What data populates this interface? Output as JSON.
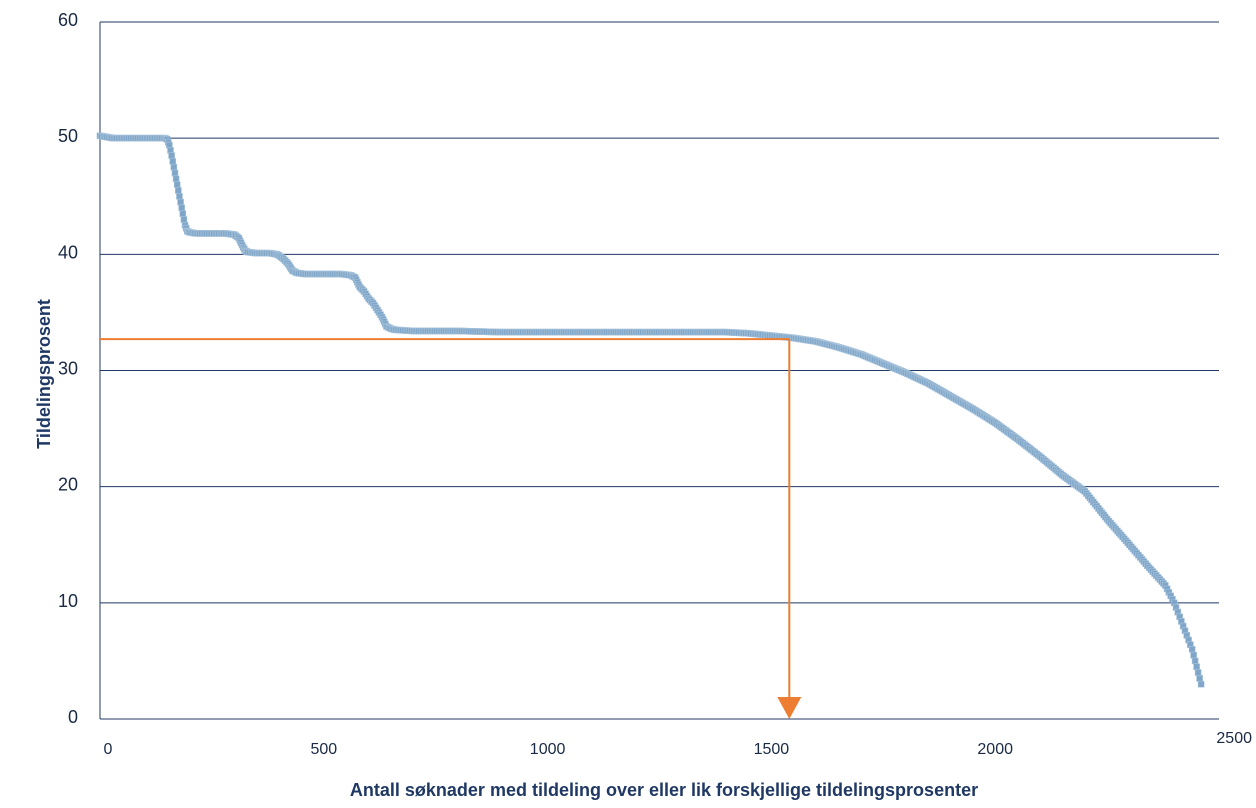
{
  "chart_data": {
    "type": "scatter",
    "title": "",
    "xlabel": "Antall søknader med tildeling over eller lik forskjellige tildelingsprosenter",
    "ylabel": "Tildelingsprosent",
    "xlim": [
      0,
      2500
    ],
    "ylim": [
      0,
      60
    ],
    "xticks": [
      "0",
      "500",
      "1000",
      "1500",
      "2000",
      "2500"
    ],
    "yticks": [
      "0",
      "10",
      "20",
      "30",
      "40",
      "50",
      "60"
    ],
    "grid": "horizontal",
    "legend": "none",
    "colors": {
      "series": "#7fa6c8",
      "annotation": "#ed7d31",
      "grid": "#1f3864"
    },
    "series": [
      {
        "points": [
          [
            0,
            50.2
          ],
          [
            15,
            50.1
          ],
          [
            30,
            50.0
          ],
          [
            60,
            50.0
          ],
          [
            100,
            50.0
          ],
          [
            130,
            50.0
          ],
          [
            145,
            50.0
          ],
          [
            150,
            49.9
          ],
          [
            155,
            49.4
          ],
          [
            160,
            48.5
          ],
          [
            165,
            47.5
          ],
          [
            170,
            46.5
          ],
          [
            175,
            45.5
          ],
          [
            180,
            44.5
          ],
          [
            185,
            43.5
          ],
          [
            190,
            42.5
          ],
          [
            195,
            42.0
          ],
          [
            200,
            41.9
          ],
          [
            215,
            41.8
          ],
          [
            250,
            41.8
          ],
          [
            280,
            41.8
          ],
          [
            300,
            41.7
          ],
          [
            310,
            41.4
          ],
          [
            315,
            41.0
          ],
          [
            320,
            40.6
          ],
          [
            325,
            40.3
          ],
          [
            330,
            40.2
          ],
          [
            350,
            40.1
          ],
          [
            380,
            40.1
          ],
          [
            395,
            40.0
          ],
          [
            400,
            39.9
          ],
          [
            410,
            39.6
          ],
          [
            420,
            39.2
          ],
          [
            425,
            38.9
          ],
          [
            430,
            38.6
          ],
          [
            440,
            38.4
          ],
          [
            460,
            38.3
          ],
          [
            500,
            38.3
          ],
          [
            540,
            38.3
          ],
          [
            560,
            38.2
          ],
          [
            570,
            38.0
          ],
          [
            575,
            37.6
          ],
          [
            580,
            37.2
          ],
          [
            590,
            36.8
          ],
          [
            600,
            36.2
          ],
          [
            610,
            35.8
          ],
          [
            620,
            35.2
          ],
          [
            630,
            34.6
          ],
          [
            635,
            34.2
          ],
          [
            640,
            33.8
          ],
          [
            650,
            33.6
          ],
          [
            660,
            33.5
          ],
          [
            700,
            33.4
          ],
          [
            800,
            33.4
          ],
          [
            900,
            33.3
          ],
          [
            1000,
            33.3
          ],
          [
            1100,
            33.3
          ],
          [
            1200,
            33.3
          ],
          [
            1300,
            33.3
          ],
          [
            1400,
            33.3
          ],
          [
            1450,
            33.2
          ],
          [
            1500,
            33.0
          ],
          [
            1550,
            32.8
          ],
          [
            1600,
            32.5
          ],
          [
            1650,
            32.0
          ],
          [
            1700,
            31.4
          ],
          [
            1750,
            30.6
          ],
          [
            1800,
            29.8
          ],
          [
            1850,
            28.9
          ],
          [
            1900,
            27.8
          ],
          [
            1950,
            26.7
          ],
          [
            2000,
            25.5
          ],
          [
            2050,
            24.1
          ],
          [
            2100,
            22.6
          ],
          [
            2150,
            21.0
          ],
          [
            2200,
            19.6
          ],
          [
            2250,
            17.2
          ],
          [
            2300,
            15.0
          ],
          [
            2340,
            13.2
          ],
          [
            2380,
            11.5
          ],
          [
            2400,
            10.0
          ],
          [
            2420,
            8.0
          ],
          [
            2440,
            6.0
          ],
          [
            2450,
            4.5
          ],
          [
            2460,
            3.0
          ]
        ]
      }
    ],
    "annotation": {
      "x": 1540,
      "y": 32.7,
      "description": "orange reference line from y-axis at 32.7 to x=1540, then arrow down to x-axis"
    }
  }
}
